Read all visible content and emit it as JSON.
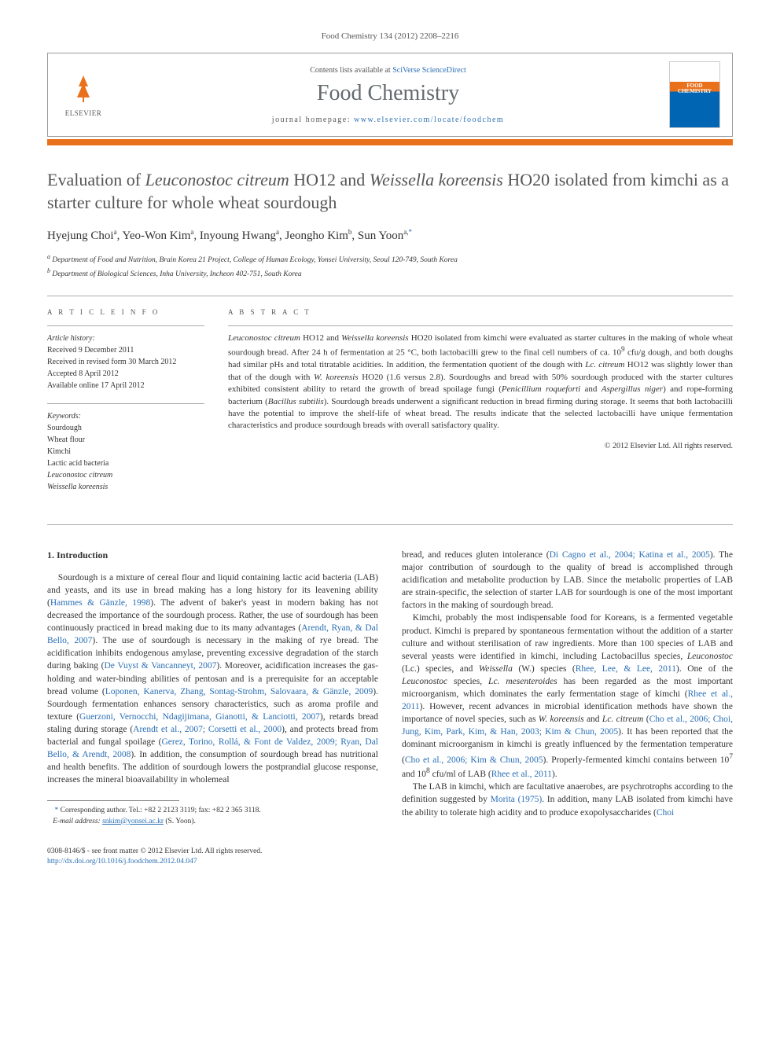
{
  "journal_ref": "Food Chemistry 134 (2012) 2208–2216",
  "header": {
    "elsevier_label": "ELSEVIER",
    "contents_prefix": "Contents lists available at ",
    "contents_link": "SciVerse ScienceDirect",
    "journal_name": "Food Chemistry",
    "homepage_prefix": "journal homepage: ",
    "homepage_link": "www.elsevier.com/locate/foodchem",
    "cover_text": "FOOD CHEMISTRY"
  },
  "title_parts": {
    "pre1": "Evaluation of ",
    "em1": "Leuconostoc citreum",
    "mid1": " HO12 and ",
    "em2": "Weissella koreensis",
    "post1": " HO20 isolated from kimchi as a starter culture for whole wheat sourdough"
  },
  "authors": {
    "a1": "Hyejung Choi",
    "a1sup": "a",
    "a2": "Yeo-Won Kim",
    "a2sup": "a",
    "a3": "Inyoung Hwang",
    "a3sup": "a",
    "a4": "Jeongho Kim",
    "a4sup": "b",
    "a5": "Sun Yoon",
    "a5sup": "a,",
    "a5star": "*"
  },
  "affiliations": {
    "a": "Department of Food and Nutrition, Brain Korea 21 Project, College of Human Ecology, Yonsei University, Seoul 120-749, South Korea",
    "b": "Department of Biological Sciences, Inha University, Incheon 402-751, South Korea"
  },
  "info": {
    "heading": "A R T I C L E   I N F O",
    "history_label": "Article history:",
    "received": "Received 9 December 2011",
    "revised": "Received in revised form 30 March 2012",
    "accepted": "Accepted 8 April 2012",
    "online": "Available online 17 April 2012",
    "keywords_label": "Keywords:",
    "k1": "Sourdough",
    "k2": "Wheat flour",
    "k3": "Kimchi",
    "k4": "Lactic acid bacteria",
    "k5": "Leuconostoc citreum",
    "k6": "Weissella koreensis"
  },
  "abstract": {
    "heading": "A B S T R A C T",
    "text_parts": [
      {
        "em": "Leuconostoc citreum"
      },
      " HO12 and ",
      {
        "em": "Weissella koreensis"
      },
      " HO20 isolated from kimchi were evaluated as starter cultures in the making of whole wheat sourdough bread. After 24 h of fermentation at 25 °C, both lactobacilli grew to the final cell numbers of ca. 10",
      {
        "sup": "9"
      },
      " cfu/g dough, and both doughs had similar pHs and total titratable acidities. In addition, the fermentation quotient of the dough with ",
      {
        "em": "Lc. citreum"
      },
      " HO12 was slightly lower than that of the dough with ",
      {
        "em": "W. koreensis"
      },
      " HO20 (1.6 versus 2.8). Sourdoughs and bread with 50% sourdough produced with the starter cultures exhibited consistent ability to retard the growth of bread spoilage fungi (",
      {
        "em": "Penicillium roqueforti"
      },
      " and ",
      {
        "em": "Aspergillus niger"
      },
      ") and rope-forming bacterium (",
      {
        "em": "Bacillus subtilis"
      },
      "). Sourdough breads underwent a significant reduction in bread firming during storage. It seems that both lactobacilli have the potential to improve the shelf-life of wheat bread. The results indicate that the selected lactobacilli have unique fermentation characteristics and produce sourdough breads with overall satisfactory quality."
    ],
    "copyright": "© 2012 Elsevier Ltd. All rights reserved."
  },
  "body": {
    "section_heading": "1. Introduction",
    "col1": [
      "Sourdough is a mixture of cereal flour and liquid containing lactic acid bacteria (LAB) and yeasts, and its use in bread making has a long history for its leavening ability (",
      {
        "ref": "Hammes & Gänzle, 1998"
      },
      "). The advent of baker's yeast in modern baking has not decreased the importance of the sourdough process. Rather, the use of sourdough has been continuously practiced in bread making due to its many advantages (",
      {
        "ref": "Arendt, Ryan, & Dal Bello, 2007"
      },
      "). The use of sourdough is necessary in the making of rye bread. The acidification inhibits endogenous amylase, preventing excessive degradation of the starch during baking (",
      {
        "ref": "De Vuyst & Vancanneyt, 2007"
      },
      "). Moreover, acidification increases the gas-holding and water-binding abilities of pentosan and is a prerequisite for an acceptable bread volume (",
      {
        "ref": "Loponen, Kanerva, Zhang, Sontag-Strohm, Salovaara, & Gänzle, 2009"
      },
      "). Sourdough fermentation enhances sensory characteristics, such as aroma profile and texture (",
      {
        "ref": "Guerzoni, Vernocchi, Ndagijimana, Gianotti, & Lanciotti, 2007"
      },
      "), retards bread staling during storage (",
      {
        "ref": "Arendt et al., 2007; Corsetti et al., 2000"
      },
      "), and protects bread from bacterial and fungal spoilage (",
      {
        "ref": "Gerez, Torino, Rollá, & Font de Valdez, 2009; Ryan, Dal Bello, & Arendt, 2008"
      },
      "). In addition, the consumption of sourdough bread has nutritional and health benefits. The addition of sourdough lowers the postprandial glucose response, increases the mineral bioavailability in wholemeal"
    ],
    "col2_p1": [
      "bread, and reduces gluten intolerance (",
      {
        "ref": "Di Cagno et al., 2004; Katina et al., 2005"
      },
      "). The major contribution of sourdough to the quality of bread is accomplished through acidification and metabolite production by LAB. Since the metabolic properties of LAB are strain-specific, the selection of starter LAB for sourdough is one of the most important factors in the making of sourdough bread."
    ],
    "col2_p2": [
      "Kimchi, probably the most indispensable food for Koreans, is a fermented vegetable product. Kimchi is prepared by spontaneous fermentation without the addition of a starter culture and without sterilisation of raw ingredients. More than 100 species of LAB and several yeasts were identified in kimchi, including Lactobacillus species, ",
      {
        "em": "Leuconostoc"
      },
      " (Lc.) species, and ",
      {
        "em": "Weissella"
      },
      " (W.) species (",
      {
        "ref": "Rhee, Lee, & Lee, 2011"
      },
      "). One of the ",
      {
        "em": "Leuconostoc"
      },
      " species, ",
      {
        "em": "Lc. mesenteroides"
      },
      " has been regarded as the most important microorganism, which dominates the early fermentation stage of kimchi (",
      {
        "ref": "Rhee et al., 2011"
      },
      "). However, recent advances in microbial identification methods have shown the importance of novel species, such as ",
      {
        "em": "W. koreensis"
      },
      " and ",
      {
        "em": "Lc. citreum"
      },
      " (",
      {
        "ref": "Cho et al., 2006; Choi, Jung, Kim, Park, Kim, & Han, 2003; Kim & Chun, 2005"
      },
      "). It has been reported that the dominant microorganism in kimchi is greatly influenced by the fermentation temperature (",
      {
        "ref": "Cho et al., 2006; Kim & Chun, 2005"
      },
      "). Properly-fermented kimchi contains between 10",
      {
        "sup": "7"
      },
      " and 10",
      {
        "sup": "8"
      },
      " cfu/ml of LAB (",
      {
        "ref": "Rhee et al., 2011"
      },
      ")."
    ],
    "col2_p3": [
      "The LAB in kimchi, which are facultative anaerobes, are psychrotrophs according to the definition suggested by ",
      {
        "ref": "Morita (1975)"
      },
      ". In addition, many LAB isolated from kimchi have the ability to tolerate high acidity and to produce exopolysaccharides (",
      {
        "ref": "Choi"
      }
    ]
  },
  "footnote": {
    "corr": "Corresponding author. Tel.: +82 2 2123 3119; fax: +82 2 365 3118.",
    "email_label": "E-mail address:",
    "email": "snkim@yonsei.ac.kr",
    "email_who": "(S. Yoon)."
  },
  "footer": {
    "issn": "0308-8146/$ - see front matter © 2012 Elsevier Ltd. All rights reserved.",
    "doi": "http://dx.doi.org/10.1016/j.foodchem.2012.04.047"
  }
}
